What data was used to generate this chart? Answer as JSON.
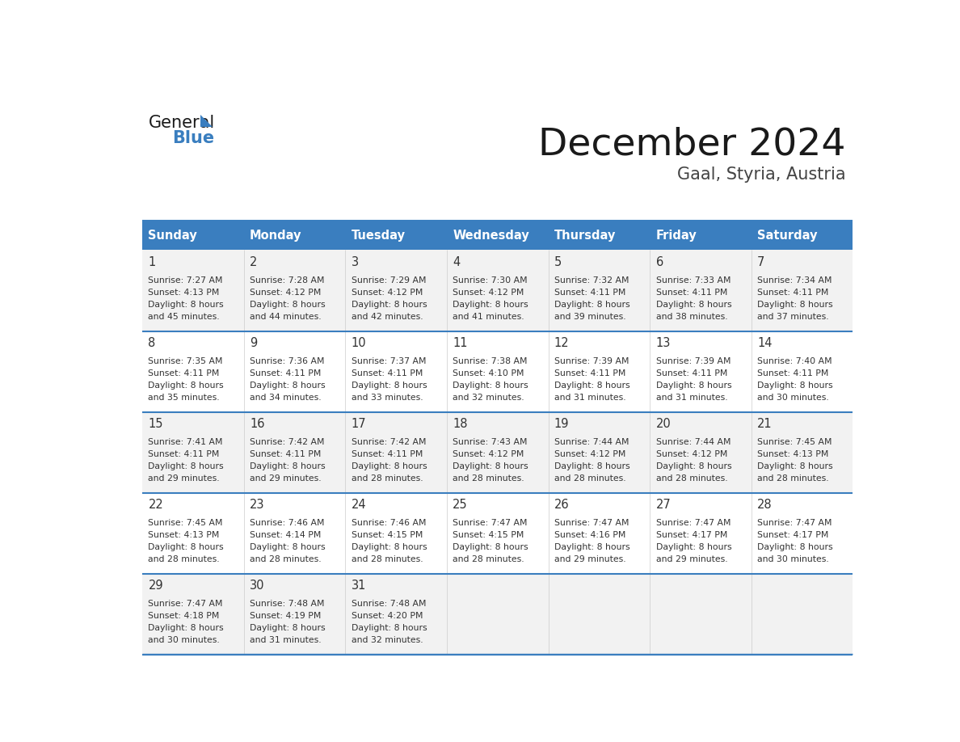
{
  "title": "December 2024",
  "subtitle": "Gaal, Styria, Austria",
  "header_bg": "#3a7ebf",
  "header_text": "#ffffff",
  "row_bg_odd": "#f2f2f2",
  "row_bg_even": "#ffffff",
  "day_names": [
    "Sunday",
    "Monday",
    "Tuesday",
    "Wednesday",
    "Thursday",
    "Friday",
    "Saturday"
  ],
  "weeks": [
    [
      {
        "day": 1,
        "sunrise": "7:27 AM",
        "sunset": "4:13 PM",
        "daylight": "8 hours and 45 minutes."
      },
      {
        "day": 2,
        "sunrise": "7:28 AM",
        "sunset": "4:12 PM",
        "daylight": "8 hours and 44 minutes."
      },
      {
        "day": 3,
        "sunrise": "7:29 AM",
        "sunset": "4:12 PM",
        "daylight": "8 hours and 42 minutes."
      },
      {
        "day": 4,
        "sunrise": "7:30 AM",
        "sunset": "4:12 PM",
        "daylight": "8 hours and 41 minutes."
      },
      {
        "day": 5,
        "sunrise": "7:32 AM",
        "sunset": "4:11 PM",
        "daylight": "8 hours and 39 minutes."
      },
      {
        "day": 6,
        "sunrise": "7:33 AM",
        "sunset": "4:11 PM",
        "daylight": "8 hours and 38 minutes."
      },
      {
        "day": 7,
        "sunrise": "7:34 AM",
        "sunset": "4:11 PM",
        "daylight": "8 hours and 37 minutes."
      }
    ],
    [
      {
        "day": 8,
        "sunrise": "7:35 AM",
        "sunset": "4:11 PM",
        "daylight": "8 hours and 35 minutes."
      },
      {
        "day": 9,
        "sunrise": "7:36 AM",
        "sunset": "4:11 PM",
        "daylight": "8 hours and 34 minutes."
      },
      {
        "day": 10,
        "sunrise": "7:37 AM",
        "sunset": "4:11 PM",
        "daylight": "8 hours and 33 minutes."
      },
      {
        "day": 11,
        "sunrise": "7:38 AM",
        "sunset": "4:10 PM",
        "daylight": "8 hours and 32 minutes."
      },
      {
        "day": 12,
        "sunrise": "7:39 AM",
        "sunset": "4:11 PM",
        "daylight": "8 hours and 31 minutes."
      },
      {
        "day": 13,
        "sunrise": "7:39 AM",
        "sunset": "4:11 PM",
        "daylight": "8 hours and 31 minutes."
      },
      {
        "day": 14,
        "sunrise": "7:40 AM",
        "sunset": "4:11 PM",
        "daylight": "8 hours and 30 minutes."
      }
    ],
    [
      {
        "day": 15,
        "sunrise": "7:41 AM",
        "sunset": "4:11 PM",
        "daylight": "8 hours and 29 minutes."
      },
      {
        "day": 16,
        "sunrise": "7:42 AM",
        "sunset": "4:11 PM",
        "daylight": "8 hours and 29 minutes."
      },
      {
        "day": 17,
        "sunrise": "7:42 AM",
        "sunset": "4:11 PM",
        "daylight": "8 hours and 28 minutes."
      },
      {
        "day": 18,
        "sunrise": "7:43 AM",
        "sunset": "4:12 PM",
        "daylight": "8 hours and 28 minutes."
      },
      {
        "day": 19,
        "sunrise": "7:44 AM",
        "sunset": "4:12 PM",
        "daylight": "8 hours and 28 minutes."
      },
      {
        "day": 20,
        "sunrise": "7:44 AM",
        "sunset": "4:12 PM",
        "daylight": "8 hours and 28 minutes."
      },
      {
        "day": 21,
        "sunrise": "7:45 AM",
        "sunset": "4:13 PM",
        "daylight": "8 hours and 28 minutes."
      }
    ],
    [
      {
        "day": 22,
        "sunrise": "7:45 AM",
        "sunset": "4:13 PM",
        "daylight": "8 hours and 28 minutes."
      },
      {
        "day": 23,
        "sunrise": "7:46 AM",
        "sunset": "4:14 PM",
        "daylight": "8 hours and 28 minutes."
      },
      {
        "day": 24,
        "sunrise": "7:46 AM",
        "sunset": "4:15 PM",
        "daylight": "8 hours and 28 minutes."
      },
      {
        "day": 25,
        "sunrise": "7:47 AM",
        "sunset": "4:15 PM",
        "daylight": "8 hours and 28 minutes."
      },
      {
        "day": 26,
        "sunrise": "7:47 AM",
        "sunset": "4:16 PM",
        "daylight": "8 hours and 29 minutes."
      },
      {
        "day": 27,
        "sunrise": "7:47 AM",
        "sunset": "4:17 PM",
        "daylight": "8 hours and 29 minutes."
      },
      {
        "day": 28,
        "sunrise": "7:47 AM",
        "sunset": "4:17 PM",
        "daylight": "8 hours and 30 minutes."
      }
    ],
    [
      {
        "day": 29,
        "sunrise": "7:47 AM",
        "sunset": "4:18 PM",
        "daylight": "8 hours and 30 minutes."
      },
      {
        "day": 30,
        "sunrise": "7:48 AM",
        "sunset": "4:19 PM",
        "daylight": "8 hours and 31 minutes."
      },
      {
        "day": 31,
        "sunrise": "7:48 AM",
        "sunset": "4:20 PM",
        "daylight": "8 hours and 32 minutes."
      },
      null,
      null,
      null,
      null
    ]
  ],
  "logo_text_general": "General",
  "logo_text_blue": "Blue",
  "logo_blue": "#3a7ebf",
  "logo_black": "#1a1a1a",
  "title_color": "#1a1a1a",
  "subtitle_color": "#444444",
  "cell_text_color": "#333333",
  "day_num_color": "#333333",
  "divider_color": "#3a7ebf"
}
